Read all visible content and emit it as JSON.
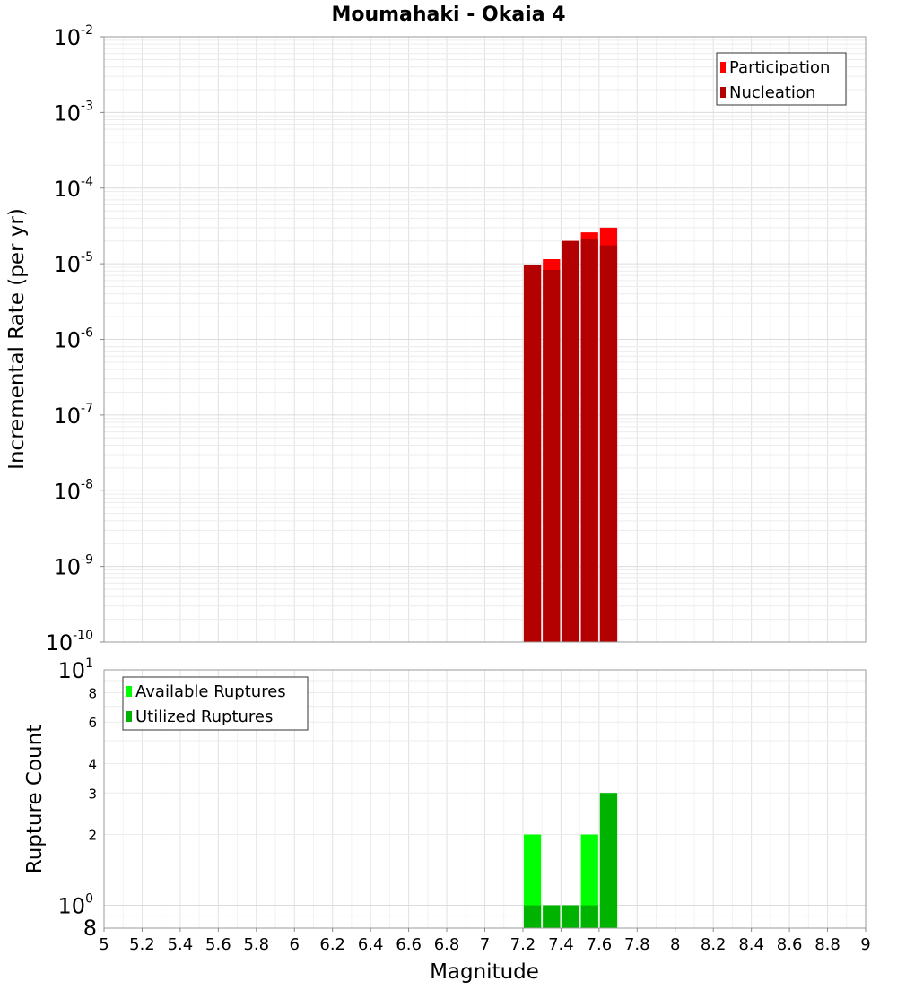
{
  "chart_data": {
    "title": "Moumahaki - Okaia 4",
    "xlabel": "Magnitude",
    "x_ticks": [
      "5",
      "5.2",
      "5.4",
      "5.6",
      "5.8",
      "6",
      "6.2",
      "6.4",
      "6.6",
      "6.8",
      "7",
      "7.2",
      "7.4",
      "7.6",
      "7.8",
      "8",
      "8.2",
      "8.4",
      "8.6",
      "8.8",
      "9"
    ],
    "xlim": [
      5,
      9
    ],
    "bin_width": 0.1,
    "panels": [
      {
        "type": "bar",
        "scale": "log",
        "ylabel": "Incremental Rate (per yr)",
        "ylim": [
          1e-10,
          0.01
        ],
        "y_ticks": [
          {
            "base": "10",
            "exp": "-2"
          },
          {
            "base": "10",
            "exp": "-3"
          },
          {
            "base": "10",
            "exp": "-4"
          },
          {
            "base": "10",
            "exp": "-5"
          },
          {
            "base": "10",
            "exp": "-6"
          },
          {
            "base": "10",
            "exp": "-7"
          },
          {
            "base": "10",
            "exp": "-8"
          },
          {
            "base": "10",
            "exp": "-9"
          },
          {
            "base": "10",
            "exp": "-10"
          }
        ],
        "legend": [
          "Participation",
          "Nucleation"
        ],
        "legend_position": "top-right",
        "x": [
          7.25,
          7.35,
          7.45,
          7.55,
          7.65
        ],
        "series": [
          {
            "name": "Participation",
            "color": "#ff0000",
            "values": [
              9.5e-06,
              1.15e-05,
              2e-05,
              2.6e-05,
              3e-05
            ]
          },
          {
            "name": "Nucleation",
            "color": "#b30000",
            "values": [
              9.5e-06,
              8.3e-06,
              2e-05,
              2.1e-05,
              1.75e-05
            ]
          }
        ]
      },
      {
        "type": "bar",
        "scale": "log",
        "ylabel": "Rupture Count",
        "ylim": [
          0.8,
          10
        ],
        "y_ticks_main": [
          {
            "base": "10",
            "exp": "1"
          },
          {
            "base": "10",
            "exp": "0"
          }
        ],
        "y_ticks_minor": [
          "8",
          "6",
          "4",
          "3",
          "2"
        ],
        "y_tick_bottom": "8",
        "legend": [
          "Available Ruptures",
          "Utilized Ruptures"
        ],
        "legend_position": "top-left",
        "x": [
          7.25,
          7.35,
          7.45,
          7.55,
          7.65
        ],
        "series": [
          {
            "name": "Available Ruptures",
            "color": "#00ff00",
            "values": [
              2,
              1,
              1,
              2,
              3
            ]
          },
          {
            "name": "Utilized Ruptures",
            "color": "#00b300",
            "values": [
              1,
              1,
              1,
              1,
              3
            ]
          }
        ]
      }
    ]
  }
}
